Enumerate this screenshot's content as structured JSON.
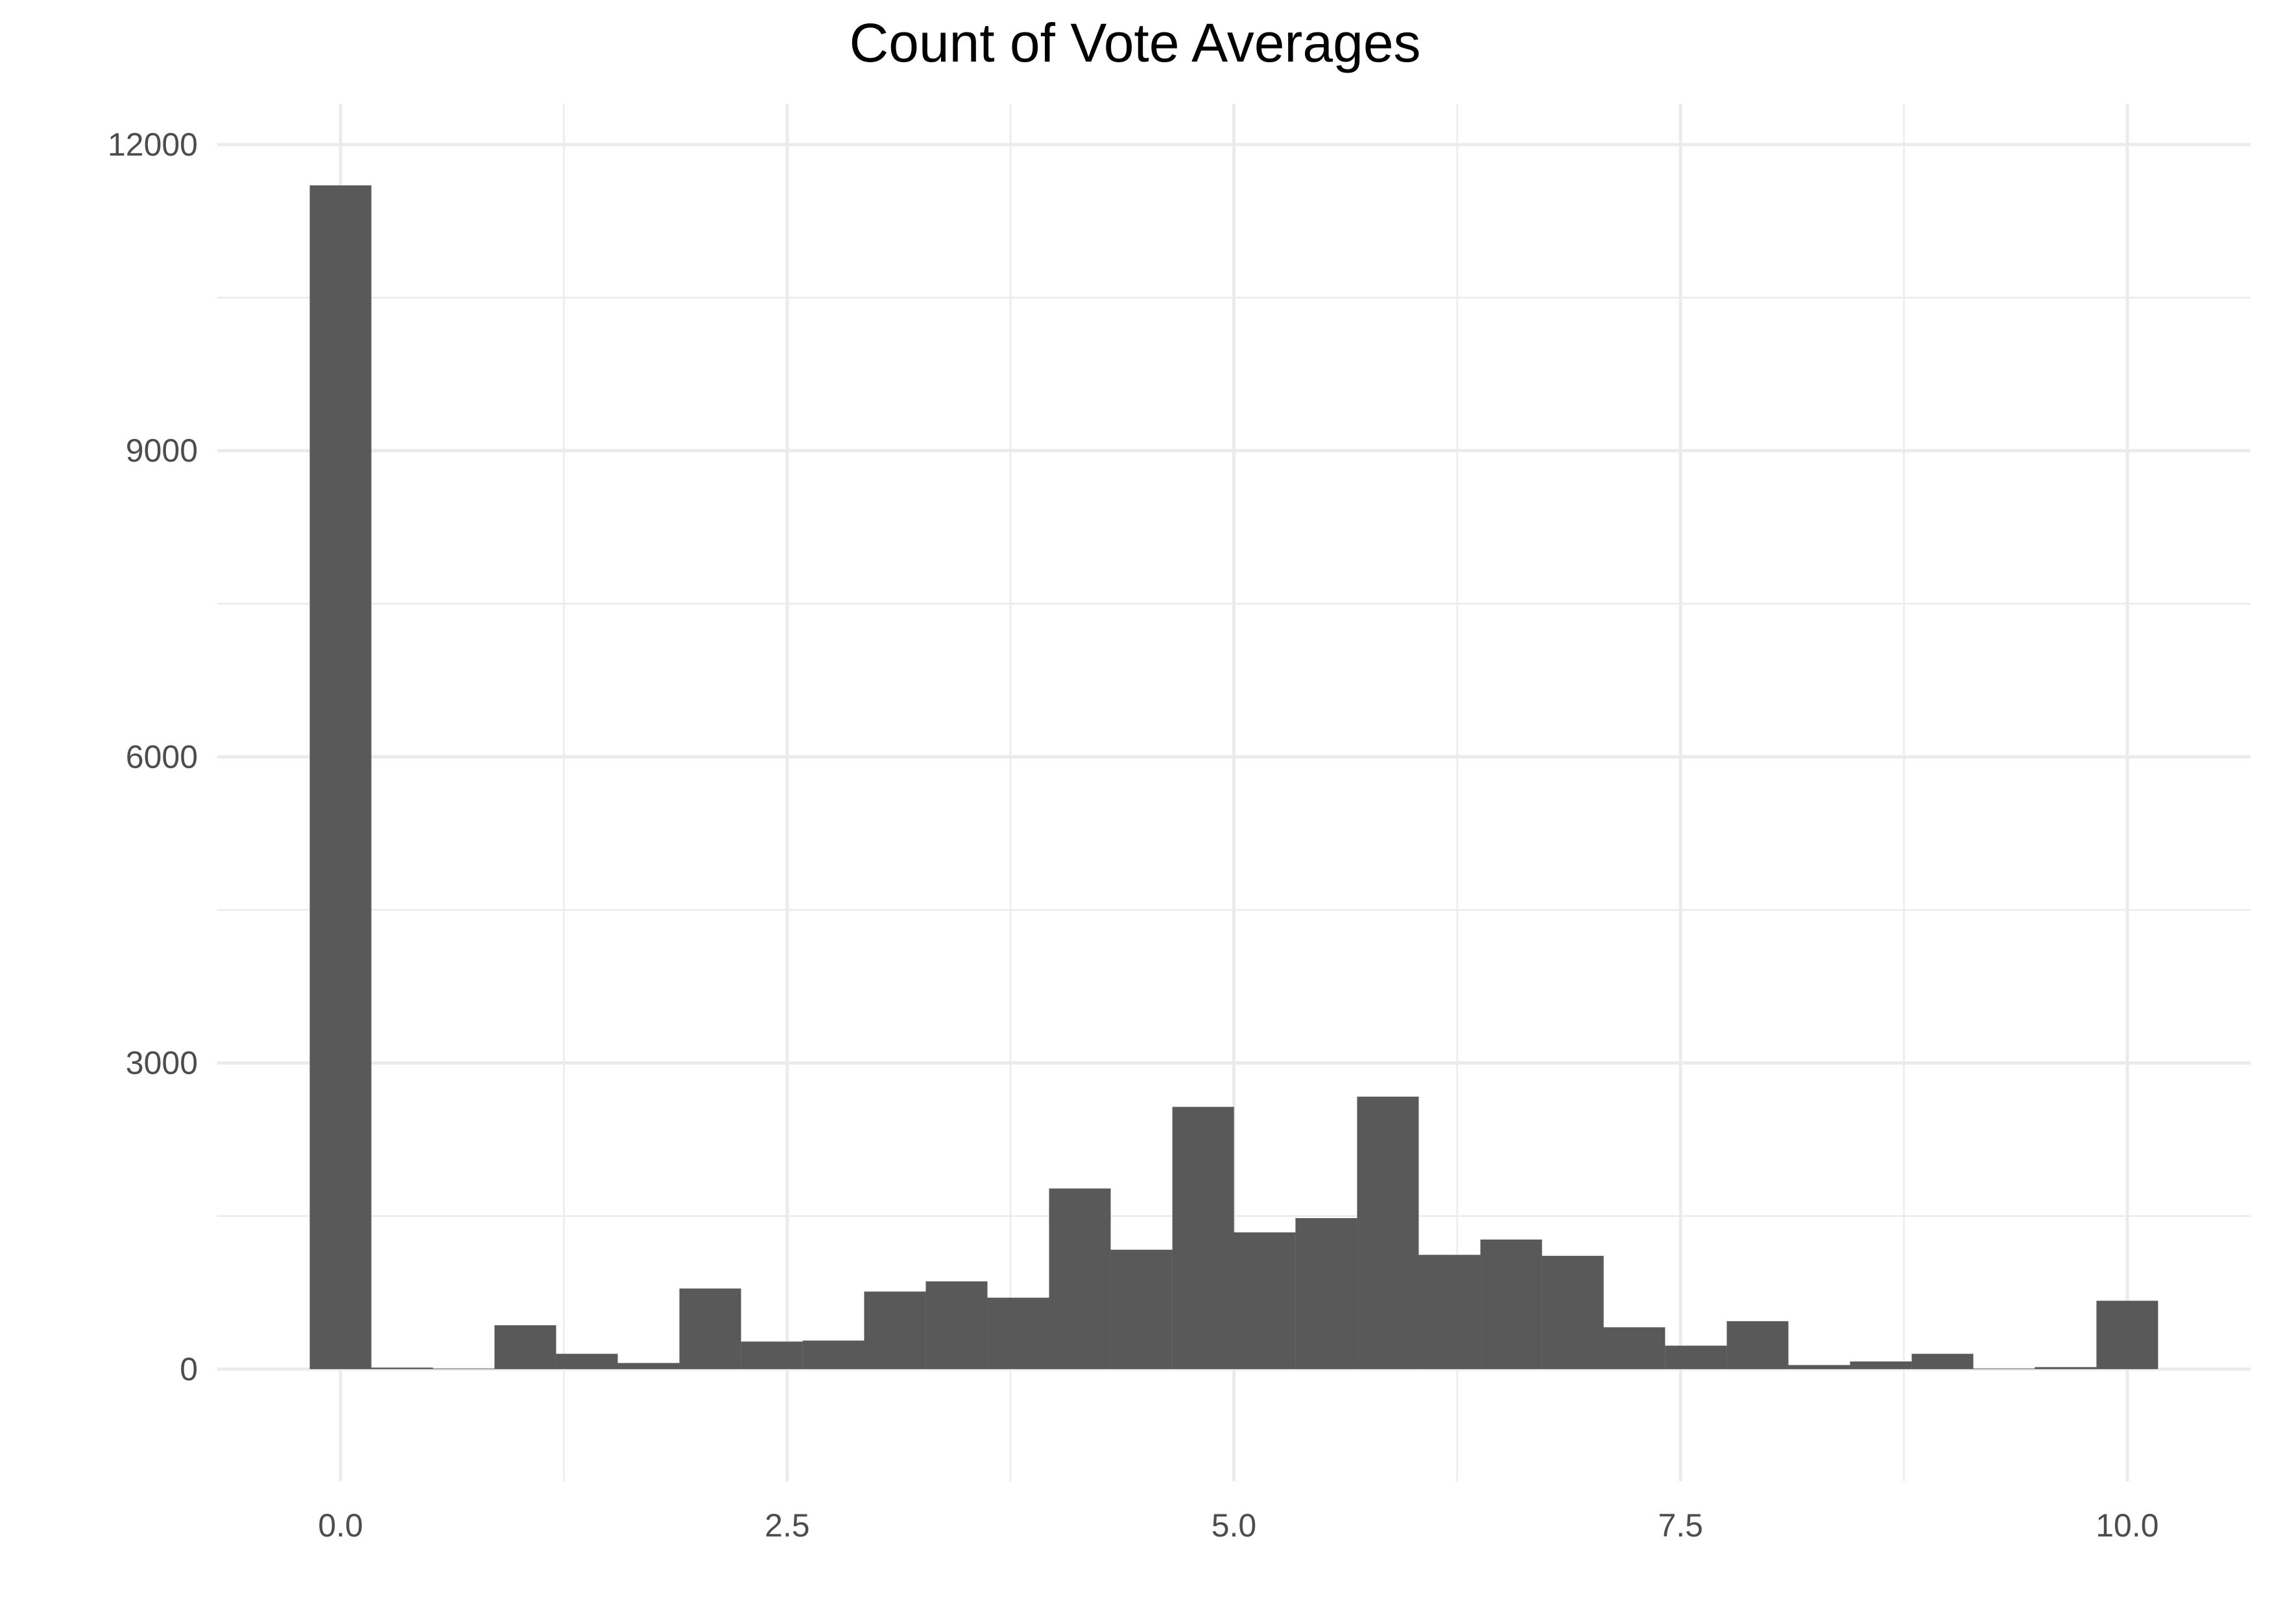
{
  "chart_data": {
    "type": "bar",
    "title": "Count of Vote Averages",
    "xlabel": "",
    "ylabel": "",
    "xlim": [
      -0.69,
      10.69
    ],
    "ylim": [
      -1100,
      12400
    ],
    "x_ticks": [
      0.0,
      2.5,
      5.0,
      7.5,
      10.0
    ],
    "x_tick_labels": [
      "0.0",
      "2.5",
      "5.0",
      "7.5",
      "10.0"
    ],
    "y_ticks": [
      0,
      3000,
      6000,
      9000,
      12000
    ],
    "y_tick_labels": [
      "0",
      "3000",
      "6000",
      "9000",
      "12000"
    ],
    "grid": true,
    "bar_color": "#595959",
    "bin_width": 0.345,
    "bins": [
      {
        "x": 0.0,
        "count": 11600
      },
      {
        "x": 0.345,
        "count": 15
      },
      {
        "x": 0.69,
        "count": 5
      },
      {
        "x": 1.034,
        "count": 430
      },
      {
        "x": 1.379,
        "count": 150
      },
      {
        "x": 1.724,
        "count": 60
      },
      {
        "x": 2.069,
        "count": 790
      },
      {
        "x": 2.414,
        "count": 270
      },
      {
        "x": 2.759,
        "count": 280
      },
      {
        "x": 3.103,
        "count": 760
      },
      {
        "x": 3.448,
        "count": 860
      },
      {
        "x": 3.793,
        "count": 700
      },
      {
        "x": 4.138,
        "count": 1770
      },
      {
        "x": 4.483,
        "count": 1170
      },
      {
        "x": 4.828,
        "count": 2570
      },
      {
        "x": 5.172,
        "count": 1340
      },
      {
        "x": 5.517,
        "count": 1480
      },
      {
        "x": 5.862,
        "count": 2670
      },
      {
        "x": 6.207,
        "count": 1120
      },
      {
        "x": 6.552,
        "count": 1270
      },
      {
        "x": 6.897,
        "count": 1110
      },
      {
        "x": 7.241,
        "count": 410
      },
      {
        "x": 7.586,
        "count": 230
      },
      {
        "x": 7.931,
        "count": 470
      },
      {
        "x": 8.276,
        "count": 40
      },
      {
        "x": 8.621,
        "count": 75
      },
      {
        "x": 8.966,
        "count": 150
      },
      {
        "x": 9.31,
        "count": 5
      },
      {
        "x": 9.655,
        "count": 20
      },
      {
        "x": 10.0,
        "count": 670
      }
    ]
  }
}
